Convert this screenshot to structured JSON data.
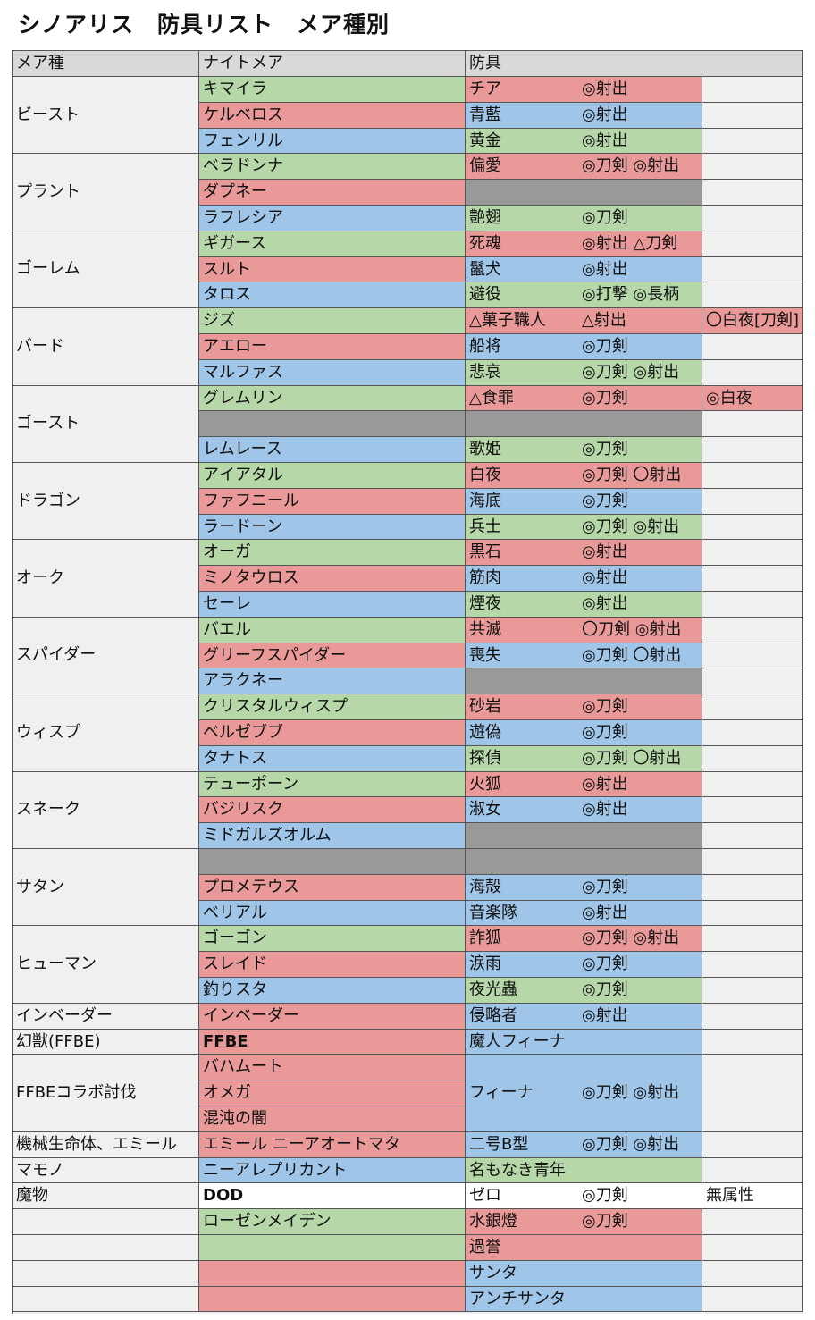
{
  "title": "シノアリス　防具リスト　メア種別",
  "headers": {
    "category": "メア種",
    "nightmare": "ナイトメア",
    "armor": "防具"
  },
  "groups": [
    {
      "name": "ビースト",
      "rows": [
        {
          "nm": "キマイラ",
          "nm_color": "green",
          "armor": "チア",
          "effect": "◎射出",
          "armor_color": "red",
          "extra": ""
        },
        {
          "nm": "ケルベロス",
          "nm_color": "red",
          "armor": "青藍",
          "effect": "◎射出",
          "armor_color": "blue",
          "extra": ""
        },
        {
          "nm": "フェンリル",
          "nm_color": "blue",
          "armor": "黄金",
          "effect": "◎射出",
          "armor_color": "green",
          "extra": ""
        }
      ]
    },
    {
      "name": "プラント",
      "rows": [
        {
          "nm": "ベラドンナ",
          "nm_color": "green",
          "armor": "偏愛",
          "effect": "◎刀剣 ◎射出",
          "armor_color": "red",
          "extra": ""
        },
        {
          "nm": "ダプネー",
          "nm_color": "red",
          "armor": "",
          "effect": "",
          "armor_color": "gray",
          "extra": ""
        },
        {
          "nm": "ラフレシア",
          "nm_color": "blue",
          "armor": "艶翅",
          "effect": "◎刀剣",
          "armor_color": "green",
          "extra": ""
        }
      ]
    },
    {
      "name": "ゴーレム",
      "rows": [
        {
          "nm": "ギガース",
          "nm_color": "green",
          "armor": "死魂",
          "effect": "◎射出 △刀剣",
          "armor_color": "red",
          "extra": ""
        },
        {
          "nm": "スルト",
          "nm_color": "red",
          "armor": "鬣犬",
          "effect": "◎射出",
          "armor_color": "blue",
          "extra": ""
        },
        {
          "nm": "タロス",
          "nm_color": "blue",
          "armor": "避役",
          "effect": "◎打撃 ◎長柄",
          "armor_color": "green",
          "extra": ""
        }
      ]
    },
    {
      "name": "バード",
      "rows": [
        {
          "nm": "ジズ",
          "nm_color": "green",
          "armor": "△菓子職人",
          "effect": "△射出",
          "armor_color": "red",
          "extra": "〇白夜[刀剣]",
          "extra_color": "red"
        },
        {
          "nm": "アエロー",
          "nm_color": "red",
          "armor": "船将",
          "effect": "◎刀剣",
          "armor_color": "blue",
          "extra": ""
        },
        {
          "nm": "マルファス",
          "nm_color": "blue",
          "armor": "悲哀",
          "effect": "◎刀剣 ◎射出",
          "armor_color": "green",
          "extra": ""
        }
      ]
    },
    {
      "name": "ゴースト",
      "rows": [
        {
          "nm": "グレムリン",
          "nm_color": "green",
          "armor": "△食罪",
          "effect": "◎刀剣",
          "armor_color": "red",
          "extra": "◎白夜",
          "extra_color": "red"
        },
        {
          "nm": "",
          "nm_color": "gray",
          "armor": "",
          "effect": "",
          "armor_color": "gray",
          "extra": ""
        },
        {
          "nm": "レムレース",
          "nm_color": "blue",
          "armor": "歌姫",
          "effect": "◎刀剣",
          "armor_color": "green",
          "extra": ""
        }
      ]
    },
    {
      "name": "ドラゴン",
      "rows": [
        {
          "nm": "アイアタル",
          "nm_color": "green",
          "armor": "白夜",
          "effect": "◎刀剣 〇射出",
          "armor_color": "red",
          "extra": ""
        },
        {
          "nm": "ファフニール",
          "nm_color": "red",
          "armor": "海底",
          "effect": "◎刀剣",
          "armor_color": "blue",
          "extra": ""
        },
        {
          "nm": "ラードーン",
          "nm_color": "blue",
          "armor": "兵士",
          "effect": "◎刀剣 ◎射出",
          "armor_color": "green",
          "extra": ""
        }
      ]
    },
    {
      "name": "オーク",
      "rows": [
        {
          "nm": "オーガ",
          "nm_color": "green",
          "armor": "黒石",
          "effect": "◎射出",
          "armor_color": "red",
          "extra": ""
        },
        {
          "nm": "ミノタウロス",
          "nm_color": "red",
          "armor": "筋肉",
          "effect": "◎射出",
          "armor_color": "blue",
          "extra": ""
        },
        {
          "nm": "セーレ",
          "nm_color": "blue",
          "armor": "煙夜",
          "effect": "◎射出",
          "armor_color": "green",
          "extra": ""
        }
      ]
    },
    {
      "name": "スパイダー",
      "rows": [
        {
          "nm": "バエル",
          "nm_color": "green",
          "armor": "共滅",
          "effect": "〇刀剣 ◎射出",
          "armor_color": "red",
          "extra": ""
        },
        {
          "nm": "グリーフスパイダー",
          "nm_color": "red",
          "armor": "喪失",
          "effect": "◎刀剣 〇射出",
          "armor_color": "blue",
          "extra": ""
        },
        {
          "nm": "アラクネー",
          "nm_color": "blue",
          "armor": "",
          "effect": "",
          "armor_color": "gray",
          "extra": ""
        }
      ]
    },
    {
      "name": "ウィスプ",
      "rows": [
        {
          "nm": "クリスタルウィスプ",
          "nm_color": "green",
          "armor": "砂岩",
          "effect": "◎刀剣",
          "armor_color": "red",
          "extra": ""
        },
        {
          "nm": "ベルゼブブ",
          "nm_color": "red",
          "armor": "遊偽",
          "effect": "◎刀剣",
          "armor_color": "blue",
          "extra": ""
        },
        {
          "nm": "タナトス",
          "nm_color": "blue",
          "armor": "探偵",
          "effect": "◎刀剣 〇射出",
          "armor_color": "green",
          "extra": ""
        }
      ]
    },
    {
      "name": "スネーク",
      "rows": [
        {
          "nm": "テューポーン",
          "nm_color": "green",
          "armor": "火狐",
          "effect": "◎射出",
          "armor_color": "red",
          "extra": ""
        },
        {
          "nm": "バジリスク",
          "nm_color": "red",
          "armor": "淑女",
          "effect": "◎射出",
          "armor_color": "blue",
          "extra": ""
        },
        {
          "nm": "ミドガルズオルム",
          "nm_color": "blue",
          "armor": "",
          "effect": "",
          "armor_color": "gray",
          "extra": ""
        }
      ]
    },
    {
      "name": "サタン",
      "rows": [
        {
          "nm": "",
          "nm_color": "gray",
          "armor": "",
          "effect": "",
          "armor_color": "gray",
          "extra": ""
        },
        {
          "nm": "プロメテウス",
          "nm_color": "red",
          "armor": "海殻",
          "effect": "◎刀剣",
          "armor_color": "blue",
          "extra": ""
        },
        {
          "nm": "ベリアル",
          "nm_color": "blue",
          "armor": "音楽隊",
          "effect": "◎射出",
          "armor_color": "blue",
          "extra": ""
        }
      ]
    },
    {
      "name": "ヒューマン",
      "rows": [
        {
          "nm": "ゴーゴン",
          "nm_color": "green",
          "armor": "詐狐",
          "effect": "◎刀剣 ◎射出",
          "armor_color": "red",
          "extra": ""
        },
        {
          "nm": "スレイド",
          "nm_color": "red",
          "armor": "涙雨",
          "effect": "◎刀剣",
          "armor_color": "blue",
          "extra": ""
        },
        {
          "nm": "釣りスタ",
          "nm_color": "blue",
          "armor": "夜光蟲",
          "effect": "◎刀剣",
          "armor_color": "green",
          "extra": ""
        }
      ]
    },
    {
      "name": "インベーダー",
      "rows": [
        {
          "nm": "インベーダー",
          "nm_color": "red",
          "armor": "侵略者",
          "effect": "◎射出",
          "armor_color": "blue",
          "extra": ""
        }
      ]
    },
    {
      "name": "幻獣(FFBE)",
      "rows": [
        {
          "nm": "FFBE",
          "nm_color": "red",
          "armor": "魔人フィーナ",
          "effect": "",
          "armor_color": "blue",
          "extra": ""
        }
      ]
    },
    {
      "name": "FFBEコラボ討伐",
      "merged_armor": {
        "armor": "フィーナ",
        "effect": "◎刀剣 ◎射出",
        "armor_color": "blue"
      },
      "rows": [
        {
          "nm": "バハムート",
          "nm_color": "red"
        },
        {
          "nm": "オメガ",
          "nm_color": "red"
        },
        {
          "nm": "混沌の闇",
          "nm_color": "red"
        }
      ]
    },
    {
      "name": "機械生命体、エミール",
      "rows": [
        {
          "nm": "エミール ニーアオートマタ",
          "nm_color": "red",
          "armor": "二号B型",
          "effect": "◎刀剣 ◎射出",
          "armor_color": "blue",
          "extra": ""
        }
      ]
    },
    {
      "name": "マモノ",
      "rows": [
        {
          "nm": "ニーアレプリカント",
          "nm_color": "blue",
          "armor": "名もなき青年",
          "effect": "",
          "armor_color": "green",
          "extra": ""
        }
      ]
    },
    {
      "name": "魔物",
      "rows": [
        {
          "nm": "DOD",
          "nm_color": "white",
          "armor": "ゼロ",
          "effect": "◎刀剣",
          "armor_color": "white",
          "extra": "無属性",
          "extra_color": "white"
        }
      ]
    },
    {
      "name": "",
      "rows": [
        {
          "nm": "ローゼンメイデン",
          "nm_color": "green",
          "armor": "水銀燈",
          "effect": "◎刀剣",
          "armor_color": "red",
          "extra": ""
        }
      ]
    },
    {
      "name": "",
      "rows": [
        {
          "nm": "",
          "nm_color": "green",
          "armor": "過誉",
          "effect": "",
          "armor_color": "red",
          "extra": ""
        }
      ]
    },
    {
      "name": "",
      "rows": [
        {
          "nm": "",
          "nm_color": "red",
          "armor": "サンタ",
          "effect": "",
          "armor_color": "blue",
          "extra": ""
        }
      ]
    },
    {
      "name": "",
      "rows": [
        {
          "nm": "",
          "nm_color": "red",
          "armor": "アンチサンタ",
          "effect": "",
          "armor_color": "blue",
          "extra": ""
        }
      ]
    }
  ]
}
